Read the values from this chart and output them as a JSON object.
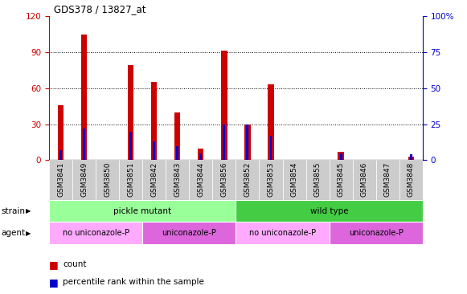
{
  "title": "GDS378 / 13827_at",
  "samples": [
    "GSM3841",
    "GSM3849",
    "GSM3850",
    "GSM3851",
    "GSM3842",
    "GSM3843",
    "GSM3844",
    "GSM3856",
    "GSM3852",
    "GSM3853",
    "GSM3854",
    "GSM3855",
    "GSM3845",
    "GSM3846",
    "GSM3847",
    "GSM3848"
  ],
  "count": [
    46,
    105,
    0,
    79,
    65,
    40,
    10,
    91,
    30,
    63,
    0,
    0,
    7,
    0,
    0,
    3
  ],
  "percentile": [
    7,
    22,
    0,
    20,
    13,
    10,
    5,
    25,
    25,
    17,
    0,
    0,
    5,
    0,
    0,
    4
  ],
  "count_color": "#cc0000",
  "percentile_color": "#0000cc",
  "left_axis_color": "#cc0000",
  "right_axis_color": "#0000cc",
  "ylim_left": [
    0,
    120
  ],
  "ylim_right": [
    0,
    100
  ],
  "yticks_left": [
    0,
    30,
    60,
    90,
    120
  ],
  "yticks_right": [
    0,
    25,
    50,
    75,
    100
  ],
  "ytick_labels_right": [
    "0",
    "25",
    "50",
    "75",
    "100%"
  ],
  "strain_labels": [
    {
      "text": "pickle mutant",
      "start": 0,
      "end": 7,
      "color": "#99ff99"
    },
    {
      "text": "wild type",
      "start": 8,
      "end": 15,
      "color": "#44cc44"
    }
  ],
  "agent_labels": [
    {
      "text": "no uniconazole-P",
      "start": 0,
      "end": 3,
      "color": "#ffaaff"
    },
    {
      "text": "uniconazole-P",
      "start": 4,
      "end": 7,
      "color": "#dd66dd"
    },
    {
      "text": "no uniconazole-P",
      "start": 8,
      "end": 11,
      "color": "#ffaaff"
    },
    {
      "text": "uniconazole-P",
      "start": 12,
      "end": 15,
      "color": "#dd66dd"
    }
  ],
  "background_color": "#ffffff",
  "legend_count": "count",
  "legend_percentile": "percentile rank within the sample"
}
